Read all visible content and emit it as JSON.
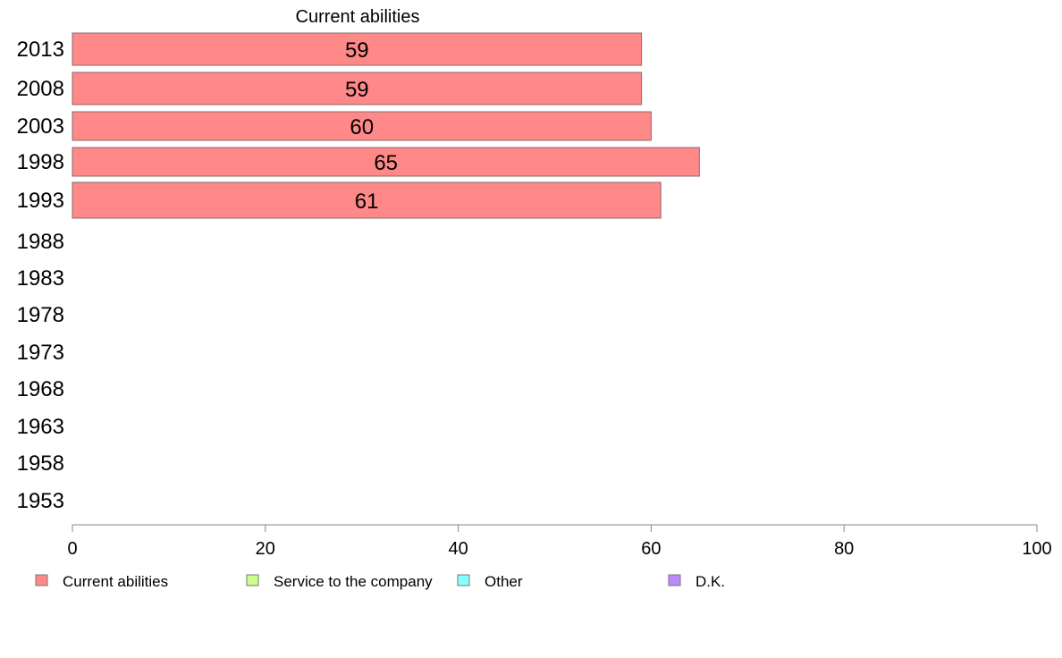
{
  "chart_data": {
    "type": "bar",
    "orientation": "horizontal",
    "title": "Current abilities",
    "categories": [
      "2013",
      "2008",
      "2003",
      "1998",
      "1993",
      "1988",
      "1983",
      "1978",
      "1973",
      "1968",
      "1963",
      "1958",
      "1953"
    ],
    "series": [
      {
        "name": "Current abilities",
        "color": "#ff8888",
        "values": [
          59,
          59,
          60,
          65,
          61,
          null,
          null,
          null,
          null,
          null,
          null,
          null,
          null
        ]
      }
    ],
    "value_labels": [
      "59",
      "59",
      "60",
      "65",
      "61"
    ],
    "xlim": [
      0,
      100
    ],
    "xticks": [
      0,
      20,
      40,
      60,
      80,
      100
    ],
    "legend": {
      "position": "bottom",
      "entries": [
        {
          "label": "Current abilities",
          "color": "#ff8888"
        },
        {
          "label": "Service to the company",
          "color": "#ccff88"
        },
        {
          "label": "Other",
          "color": "#88ffff"
        },
        {
          "label": "D.K.",
          "color": "#bb88ff"
        }
      ]
    }
  }
}
